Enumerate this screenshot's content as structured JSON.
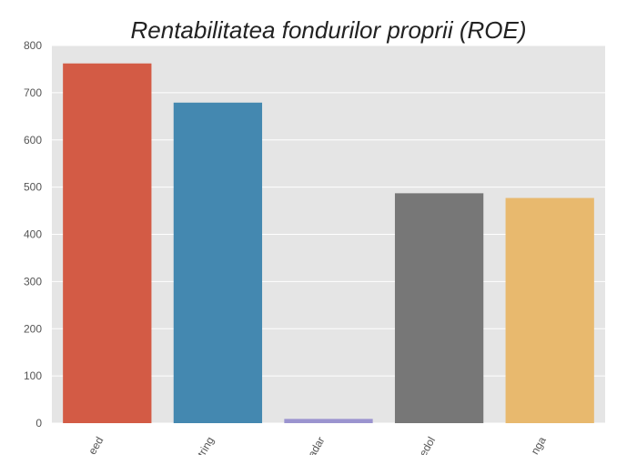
{
  "chart_data": {
    "type": "bar",
    "title": "Rentabilitatea fondurilor proprii (ROE)",
    "xlabel": "",
    "ylabel": "",
    "categories": [
      "eed",
      "tring",
      "adar",
      "edol",
      "nga"
    ],
    "values": [
      762,
      679,
      9,
      487,
      477
    ],
    "ylim": [
      0,
      800
    ],
    "yticks": [
      0,
      100,
      200,
      300,
      400,
      500,
      600,
      700,
      800
    ],
    "grid": true,
    "legend": "none",
    "colors": [
      "#d35b45",
      "#4488b0",
      "#9b94cf",
      "#777777",
      "#e8b96e"
    ],
    "background": "#e5e5e5"
  }
}
